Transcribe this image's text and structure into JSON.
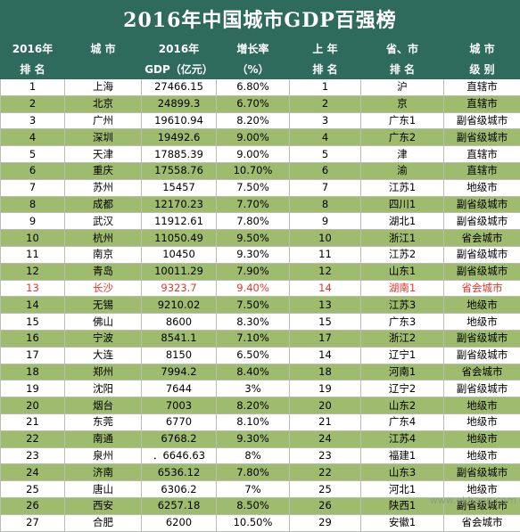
{
  "title": "2016年中国城市GDP百强榜",
  "headers": [
    [
      "2016年",
      "排 名"
    ],
    [
      "城 市",
      ""
    ],
    [
      "2016年",
      "GDP（亿元）"
    ],
    [
      "增长率",
      "（%）"
    ],
    [
      "上 年",
      "排 名"
    ],
    [
      "省、市",
      "排 名"
    ],
    [
      "城 市",
      "级 别"
    ]
  ],
  "rows": [
    [
      "1",
      "上海",
      "27466.15",
      "6.80%",
      "1",
      "沪",
      "直辖市"
    ],
    [
      "2",
      "北京",
      "24899.3",
      "6.70%",
      "2",
      "京",
      "直辖市"
    ],
    [
      "3",
      "广州",
      "19610.94",
      "8.20%",
      "3",
      "广东1",
      "副省级城市"
    ],
    [
      "4",
      "深圳",
      "19492.6",
      "9.00%",
      "4",
      "广东2",
      "副省级城市"
    ],
    [
      "5",
      "天津",
      "17885.39",
      "9.00%",
      "5",
      "津",
      "直辖市"
    ],
    [
      "6",
      "重庆",
      "17558.76",
      "10.70%",
      "6",
      "渝",
      "直辖市"
    ],
    [
      "7",
      "苏州",
      "15457",
      "7.50%",
      "7",
      "江苏1",
      "地级市"
    ],
    [
      "8",
      "成都",
      "12170.23",
      "7.70%",
      "8",
      "四川1",
      "副省级城市"
    ],
    [
      "9",
      "武汉",
      "11912.61",
      "7.80%",
      "9",
      "湖北1",
      "副省级城市"
    ],
    [
      "10",
      "杭州",
      "11050.49",
      "9.50%",
      "10",
      "浙江1",
      "省会城市"
    ],
    [
      "11",
      "南京",
      "10450",
      "9.30%",
      "11",
      "江苏2",
      "副省级城市"
    ],
    [
      "12",
      "青岛",
      "10011.29",
      "7.90%",
      "12",
      "山东1",
      "副省级城市"
    ],
    [
      "13",
      "长沙",
      "9323.7",
      "9.40%",
      "14",
      "湖南1",
      "省会城市"
    ],
    [
      "14",
      "无锡",
      "9210.02",
      "7.50%",
      "13",
      "江苏3",
      "地级市"
    ],
    [
      "15",
      "佛山",
      "8600",
      "8.30%",
      "15",
      "广东3",
      "地级市"
    ],
    [
      "16",
      "宁波",
      "8541.1",
      "7.10%",
      "17",
      "浙江2",
      "副省级城市"
    ],
    [
      "17",
      "大连",
      "8150",
      "6.50%",
      "14",
      "辽宁1",
      "副省级城市"
    ],
    [
      "18",
      "郑州",
      "7994.2",
      "8.40%",
      "18",
      "河南1",
      "省会城市"
    ],
    [
      "19",
      "沈阳",
      "7644",
      "3%",
      "19",
      "辽宁2",
      "副省级城市"
    ],
    [
      "20",
      "烟台",
      "7003",
      "8.20%",
      "20",
      "山东2",
      "地级市"
    ],
    [
      "21",
      "东莞",
      "6770",
      "8.10%",
      "21",
      "广东4",
      "地级市"
    ],
    [
      "22",
      "南通",
      "6768.2",
      "9.30%",
      "24",
      "江苏4",
      "地级市"
    ],
    [
      "23",
      "泉州",
      "．6646.63",
      "8%",
      "23",
      "福建1",
      "地级市"
    ],
    [
      "24",
      "济南",
      "6536.12",
      "7.80%",
      "22",
      "山东3",
      "副省级城市"
    ],
    [
      "25",
      "唐山",
      "6306.2",
      "7%",
      "25",
      "河北1",
      "地级市"
    ],
    [
      "26",
      "西安",
      "6257.18",
      "8.50%",
      "26",
      "陕西1",
      "副省级城市"
    ],
    [
      "27",
      "合肥",
      "6200",
      "10.50%",
      "29",
      "安徽1",
      "省会城市"
    ]
  ],
  "highlight_row_rank": "13",
  "watermark": "www.ekbang.com",
  "colors": {
    "header_bg": "#2f6b5d",
    "band_bg": "#9ebb6e",
    "highlight_text": "#e8332a"
  }
}
